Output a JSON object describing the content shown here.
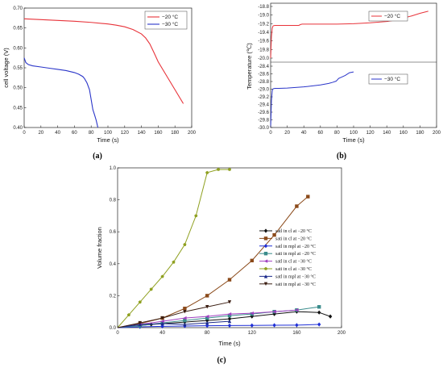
{
  "chart_data": [
    {
      "panel_label": "(a)",
      "type": "line",
      "xlabel": "Time (s)",
      "ylabel": "cell voltage (V)",
      "xlim": [
        0,
        200
      ],
      "ylim": [
        0.4,
        0.7
      ],
      "xticks": [
        "0",
        "20",
        "40",
        "60",
        "80",
        "100",
        "120",
        "140",
        "160",
        "180",
        "200"
      ],
      "yticks": [
        "0.40",
        "0.45",
        "0.50",
        "0.55",
        "0.60",
        "0.65",
        "0.70"
      ],
      "legend": "top-right",
      "grid": false,
      "series": [
        {
          "name": "−20 °C",
          "color": "#e8333a",
          "x": [
            0,
            10,
            20,
            40,
            60,
            80,
            100,
            110,
            120,
            130,
            140,
            145,
            150,
            155,
            160,
            170,
            180,
            190
          ],
          "y": [
            0.673,
            0.672,
            0.671,
            0.669,
            0.667,
            0.664,
            0.66,
            0.657,
            0.653,
            0.646,
            0.635,
            0.625,
            0.61,
            0.588,
            0.565,
            0.53,
            0.495,
            0.46
          ]
        },
        {
          "name": "−30 °C",
          "color": "#2a35c9",
          "x": [
            0,
            2,
            5,
            10,
            20,
            30,
            40,
            50,
            60,
            65,
            70,
            72,
            75,
            78,
            80,
            82,
            84,
            86,
            88
          ],
          "y": [
            0.575,
            0.563,
            0.558,
            0.555,
            0.552,
            0.549,
            0.546,
            0.543,
            0.538,
            0.534,
            0.528,
            0.523,
            0.512,
            0.495,
            0.47,
            0.445,
            0.432,
            0.418,
            0.4
          ]
        }
      ]
    },
    {
      "panel_label": "(b)",
      "type": "line",
      "xlabel": "Time (s)",
      "ylabel": "Temperature (℃)",
      "xticks": [
        "0",
        "20",
        "40",
        "60",
        "80",
        "100",
        "120",
        "140",
        "160",
        "180",
        "200"
      ],
      "xlim": [
        0,
        200
      ],
      "subplots": [
        {
          "ylim": [
            -20.0,
            -18.8
          ],
          "yticks": [
            "-18.8",
            "-19.0",
            "-19.2",
            "-19.4",
            "-19.6",
            "-19.8",
            "-20.0"
          ],
          "series": [
            {
              "name": "−20 °C",
              "color": "#e8333a",
              "x": [
                0,
                1,
                2,
                3,
                5,
                10,
                20,
                34,
                36,
                38,
                50,
                80,
                100,
                120,
                140,
                150,
                160,
                170,
                180,
                190
              ],
              "y": [
                -20.0,
                -19.5,
                -19.3,
                -19.25,
                -19.24,
                -19.24,
                -19.24,
                -19.24,
                -19.22,
                -19.21,
                -19.21,
                -19.21,
                -19.2,
                -19.18,
                -19.15,
                -19.12,
                -19.07,
                -19.02,
                -18.96,
                -18.91
              ]
            }
          ]
        },
        {
          "ylim": [
            -30.0,
            -28.4
          ],
          "yticks": [
            "-28.4",
            "-28.6",
            "-28.8",
            "-29.0",
            "-29.2",
            "-29.4",
            "-29.6",
            "-29.8",
            "-30.0"
          ],
          "series": [
            {
              "name": "−30 °C",
              "color": "#2a35c9",
              "x": [
                0,
                1,
                2,
                3,
                5,
                10,
                20,
                40,
                60,
                70,
                75,
                79,
                82,
                85,
                90,
                95,
                100
              ],
              "y": [
                -30.0,
                -29.3,
                -29.03,
                -28.99,
                -28.98,
                -28.98,
                -28.97,
                -28.94,
                -28.89,
                -28.85,
                -28.82,
                -28.79,
                -28.72,
                -28.69,
                -28.64,
                -28.57,
                -28.55
              ]
            }
          ]
        }
      ]
    },
    {
      "panel_label": "(c)",
      "type": "line",
      "xlabel": "Time (s)",
      "ylabel": "Volume fraction",
      "xlim": [
        0,
        200
      ],
      "ylim": [
        0.0,
        1.0
      ],
      "xticks": [
        "0",
        "40",
        "80",
        "120",
        "160",
        "200"
      ],
      "yticks": [
        "0.0",
        "0.2",
        "0.4",
        "0.6",
        "0.8",
        "1.0"
      ],
      "legend": "right-middle",
      "grid": false,
      "series": [
        {
          "name": "satl in cl at −20 °C",
          "color": "#111111",
          "marker": "diamond",
          "x": [
            0,
            30,
            40,
            60,
            80,
            100,
            120,
            140,
            160,
            180,
            190
          ],
          "y": [
            0,
            0.02,
            0.025,
            0.035,
            0.045,
            0.055,
            0.07,
            0.085,
            0.1,
            0.095,
            0.07
          ]
        },
        {
          "name": "sati in cl at −20 °C",
          "color": "#8b4a1a",
          "marker": "square",
          "x": [
            0,
            20,
            40,
            60,
            80,
            100,
            120,
            140,
            160,
            170
          ],
          "y": [
            0,
            0.025,
            0.06,
            0.12,
            0.2,
            0.3,
            0.42,
            0.58,
            0.76,
            0.82
          ]
        },
        {
          "name": "satl in mpl at −20 °C",
          "color": "#1f2fd6",
          "marker": "diamond",
          "x": [
            0,
            20,
            40,
            60,
            80,
            100,
            120,
            140,
            160,
            180
          ],
          "y": [
            0,
            0.005,
            0.008,
            0.01,
            0.012,
            0.013,
            0.014,
            0.015,
            0.016,
            0.02
          ]
        },
        {
          "name": "sati in mpl at −20 °C",
          "color": "#3a8c8c",
          "marker": "square",
          "x": [
            0,
            20,
            40,
            60,
            80,
            100,
            120,
            140,
            160,
            180
          ],
          "y": [
            0,
            0.012,
            0.03,
            0.045,
            0.06,
            0.075,
            0.085,
            0.1,
            0.11,
            0.13
          ]
        },
        {
          "name": "satl in cl at −30 °C",
          "color": "#a040c0",
          "marker": "triangle-left",
          "x": [
            0,
            20,
            40,
            60,
            80,
            100,
            120,
            140,
            160
          ],
          "y": [
            0,
            0.02,
            0.04,
            0.06,
            0.07,
            0.085,
            0.09,
            0.1,
            0.11
          ]
        },
        {
          "name": "sati in cl at −30 °C",
          "color": "#8fa020",
          "marker": "pentagon",
          "x": [
            0,
            10,
            20,
            30,
            40,
            50,
            60,
            70,
            80,
            90,
            100
          ],
          "y": [
            0,
            0.08,
            0.16,
            0.24,
            0.32,
            0.41,
            0.52,
            0.7,
            0.97,
            0.99,
            0.99
          ]
        },
        {
          "name": "satl in mpl at −30 °C",
          "color": "#1c2a8a",
          "marker": "triangle-up",
          "x": [
            0,
            20,
            40,
            60,
            80,
            100
          ],
          "y": [
            0,
            0.02,
            0.025,
            0.02,
            0.03,
            0.04
          ]
        },
        {
          "name": "sati in mpl at −30 °C",
          "color": "#3b1e12",
          "marker": "triangle-down",
          "x": [
            0,
            20,
            40,
            60,
            80,
            100
          ],
          "y": [
            0,
            0.03,
            0.06,
            0.1,
            0.13,
            0.16
          ]
        }
      ]
    }
  ]
}
